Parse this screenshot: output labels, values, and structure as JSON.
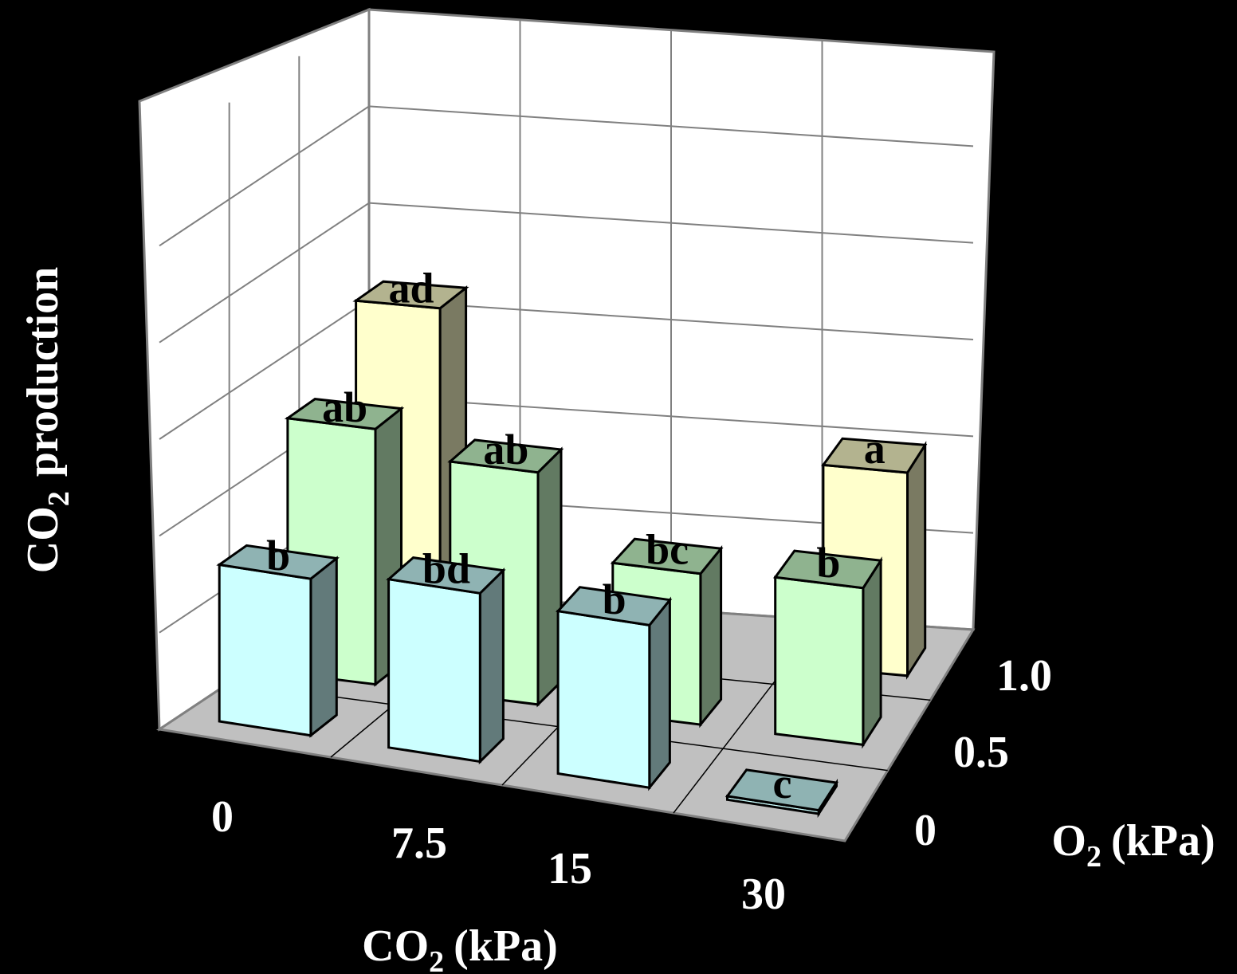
{
  "chart_data": {
    "type": "bar",
    "subtype": "3d-bar",
    "title": "",
    "ylabel": "CO",
    "ylabel_sub": "2",
    "ylabel_tail": "production",
    "xlabel": "CO",
    "xlabel_sub": "2",
    "xlabel_tail": "(kPa)",
    "zlabel": "O",
    "zlabel_sub": "2",
    "zlabel_tail": "(kPa)",
    "x_categories": [
      "0",
      "7.5",
      "15",
      "30"
    ],
    "z_categories": [
      "0",
      "0.5",
      "1.0"
    ],
    "ylim": [
      0,
      1.0
    ],
    "y_ticks_shown": false,
    "grid": true,
    "series": [
      {
        "o2": "0",
        "color": "#ccffff",
        "bars": [
          {
            "x": "0",
            "value": 0.27,
            "letter": "b"
          },
          {
            "x": "7.5",
            "value": 0.29,
            "letter": "bd"
          },
          {
            "x": "15",
            "value": 0.28,
            "letter": "b"
          },
          {
            "x": "30",
            "value": 0.0,
            "letter": "c"
          }
        ]
      },
      {
        "o2": "0.5",
        "color": "#ccffcc",
        "bars": [
          {
            "x": "0",
            "value": 0.44,
            "letter": "ab"
          },
          {
            "x": "7.5",
            "value": 0.4,
            "letter": "ab"
          },
          {
            "x": "15",
            "value": 0.26,
            "letter": "bc"
          },
          {
            "x": "30",
            "value": 0.27,
            "letter": "b"
          }
        ]
      },
      {
        "o2": "1.0",
        "color": "#ffffcc",
        "bars": [
          {
            "x": "0",
            "value": 0.56,
            "letter": "ad"
          },
          {
            "x": "7.5",
            "value": null,
            "letter": ""
          },
          {
            "x": "15",
            "value": null,
            "letter": ""
          },
          {
            "x": "30",
            "value": 0.35,
            "letter": "a"
          }
        ]
      }
    ]
  }
}
